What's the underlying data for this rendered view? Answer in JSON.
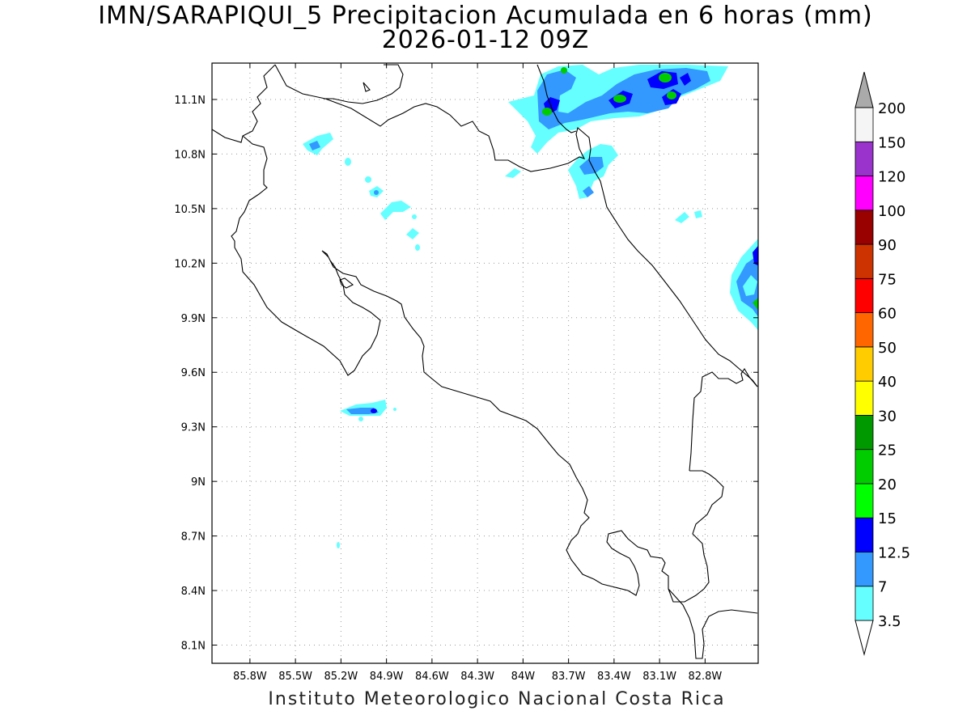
{
  "title": {
    "line1": "IMN/SARAPIQUI_5 Precipitacion Acumulada en 6 horas (mm)",
    "line2": "2026-01-12 09Z"
  },
  "footer": "Instituto Meteorologico Nacional Costa Rica",
  "map": {
    "lon_range": [
      -86.05,
      -82.45
    ],
    "lat_range": [
      8.0,
      11.3
    ],
    "lon_ticks": [
      {
        "v": -85.8,
        "label": "85.8W"
      },
      {
        "v": -85.5,
        "label": "85.5W"
      },
      {
        "v": -85.2,
        "label": "85.2W"
      },
      {
        "v": -84.9,
        "label": "84.9W"
      },
      {
        "v": -84.6,
        "label": "84.6W"
      },
      {
        "v": -84.3,
        "label": "84.3W"
      },
      {
        "v": -84.0,
        "label": "84W"
      },
      {
        "v": -83.7,
        "label": "83.7W"
      },
      {
        "v": -83.4,
        "label": "83.4W"
      },
      {
        "v": -83.1,
        "label": "83.1W"
      },
      {
        "v": -82.8,
        "label": "82.8W"
      }
    ],
    "lat_ticks": [
      {
        "v": 11.1,
        "label": "11.1N"
      },
      {
        "v": 10.8,
        "label": "10.8N"
      },
      {
        "v": 10.5,
        "label": "10.5N"
      },
      {
        "v": 10.2,
        "label": "10.2N"
      },
      {
        "v": 9.9,
        "label": "9.9N"
      },
      {
        "v": 9.6,
        "label": "9.6N"
      },
      {
        "v": 9.3,
        "label": "9.3N"
      },
      {
        "v": 9.0,
        "label": "9N"
      },
      {
        "v": 8.7,
        "label": "8.7N"
      },
      {
        "v": 8.4,
        "label": "8.4N"
      },
      {
        "v": 8.1,
        "label": "8.1N"
      }
    ],
    "grid": true
  },
  "colorbar": {
    "levels": [
      {
        "label": "3.5",
        "color": "#66ffff"
      },
      {
        "label": "7",
        "color": "#3399ff"
      },
      {
        "label": "12.5",
        "color": "#0000ff"
      },
      {
        "label": "15",
        "color": "#00ff00"
      },
      {
        "label": "20",
        "color": "#00cc00"
      },
      {
        "label": "25",
        "color": "#009900"
      },
      {
        "label": "30",
        "color": "#ffff00"
      },
      {
        "label": "40",
        "color": "#ffcc00"
      },
      {
        "label": "50",
        "color": "#ff6600"
      },
      {
        "label": "60",
        "color": "#ff0000"
      },
      {
        "label": "75",
        "color": "#cc3300"
      },
      {
        "label": "90",
        "color": "#990000"
      },
      {
        "label": "100",
        "color": "#ff00ff"
      },
      {
        "label": "120",
        "color": "#9933cc"
      },
      {
        "label": "150",
        "color": "#f5f5f5"
      },
      {
        "label": "200",
        "color": "#aaaaaa"
      }
    ],
    "below_color": "#ffffff"
  }
}
